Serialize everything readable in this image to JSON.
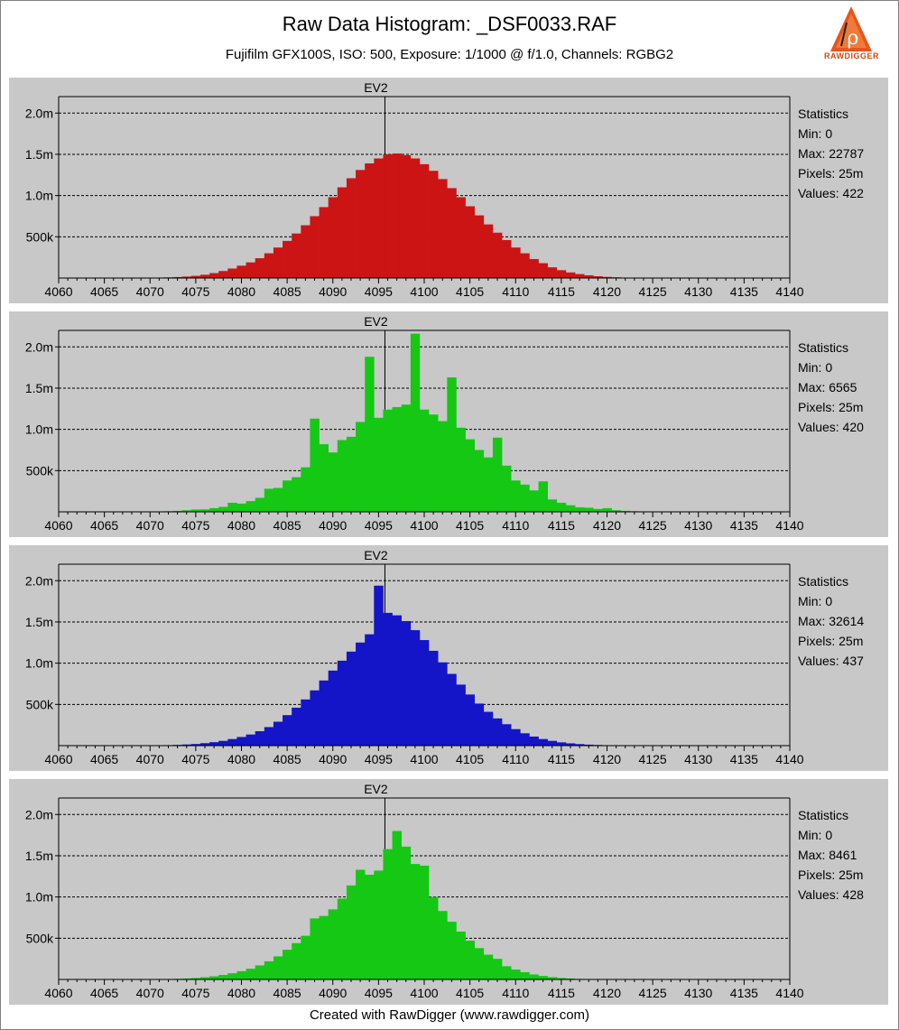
{
  "header": {
    "title": "Raw Data Histogram: _DSF0033.RAF",
    "subtitle": "Fujifilm GFX100S, ISO: 500, Exposure: 1/1000 @ f/1.0, Channels: RGBG2",
    "logo_text": "RAWDIGGER"
  },
  "footer": "Created with RawDigger (www.rawdigger.com)",
  "stats_heading": "Statistics",
  "chart_data": [
    {
      "type": "bar",
      "channel": "R",
      "color": "#cc1414",
      "marker_label": "EV2",
      "marker_x": 4096,
      "xlim": [
        4060,
        4140
      ],
      "xticks": [
        4060,
        4065,
        4070,
        4075,
        4080,
        4085,
        4090,
        4095,
        4100,
        4105,
        4110,
        4115,
        4120,
        4125,
        4130,
        4135,
        4140
      ],
      "ylim": [
        0,
        2200000
      ],
      "yticks": [
        500000,
        1000000,
        1500000,
        2000000
      ],
      "ytick_labels": [
        "500k",
        "1.0m",
        "1.5m",
        "2.0m"
      ],
      "x_start": 4070,
      "values": [
        3000,
        5000,
        8000,
        12000,
        18000,
        27000,
        40000,
        60000,
        85000,
        115000,
        150000,
        190000,
        240000,
        300000,
        370000,
        450000,
        540000,
        640000,
        750000,
        860000,
        980000,
        1100000,
        1210000,
        1310000,
        1390000,
        1450000,
        1500000,
        1510000,
        1490000,
        1450000,
        1380000,
        1300000,
        1200000,
        1090000,
        980000,
        870000,
        760000,
        650000,
        550000,
        460000,
        370000,
        300000,
        230000,
        180000,
        130000,
        95000,
        68000,
        48000,
        33000,
        22000,
        14000,
        9000,
        5000
      ],
      "stats": {
        "min": "Min: 0",
        "max": "Max: 22787",
        "pixels": "Pixels: 25m",
        "values": "Values: 422"
      }
    },
    {
      "type": "bar",
      "channel": "G",
      "color": "#14c814",
      "marker_label": "EV2",
      "marker_x": 4096,
      "xlim": [
        4060,
        4140
      ],
      "xticks": [
        4060,
        4065,
        4070,
        4075,
        4080,
        4085,
        4090,
        4095,
        4100,
        4105,
        4110,
        4115,
        4120,
        4125,
        4130,
        4135,
        4140
      ],
      "ylim": [
        0,
        2200000
      ],
      "yticks": [
        500000,
        1000000,
        1500000,
        2000000
      ],
      "ytick_labels": [
        "500k",
        "1.0m",
        "1.5m",
        "2.0m"
      ],
      "x_start": 4071,
      "values": [
        5000,
        8000,
        12000,
        20000,
        28000,
        30000,
        45000,
        60000,
        110000,
        100000,
        130000,
        170000,
        280000,
        290000,
        380000,
        420000,
        540000,
        1130000,
        820000,
        720000,
        870000,
        910000,
        1090000,
        1880000,
        1140000,
        1240000,
        1270000,
        1300000,
        2160000,
        1240000,
        1180000,
        1100000,
        1630000,
        1020000,
        880000,
        750000,
        660000,
        900000,
        560000,
        380000,
        330000,
        260000,
        370000,
        150000,
        110000,
        80000,
        55000,
        50000,
        35000,
        45000,
        20000,
        12000,
        8000,
        5000
      ],
      "stats": {
        "min": "Min: 0",
        "max": "Max: 6565",
        "pixels": "Pixels: 25m",
        "values": "Values: 420"
      }
    },
    {
      "type": "bar",
      "channel": "B",
      "color": "#1414c8",
      "marker_label": "EV2",
      "marker_x": 4096,
      "xlim": [
        4060,
        4140
      ],
      "xticks": [
        4060,
        4065,
        4070,
        4075,
        4080,
        4085,
        4090,
        4095,
        4100,
        4105,
        4110,
        4115,
        4120,
        4125,
        4130,
        4135,
        4140
      ],
      "ylim": [
        0,
        2200000
      ],
      "yticks": [
        500000,
        1000000,
        1500000,
        2000000
      ],
      "ytick_labels": [
        "500k",
        "1.0m",
        "1.5m",
        "2.0m"
      ],
      "x_start": 4072,
      "values": [
        6000,
        9000,
        14000,
        20000,
        30000,
        42000,
        58000,
        80000,
        105000,
        135000,
        175000,
        225000,
        290000,
        370000,
        460000,
        560000,
        670000,
        790000,
        910000,
        1030000,
        1140000,
        1250000,
        1350000,
        1940000,
        1610000,
        1580000,
        1510000,
        1400000,
        1280000,
        1150000,
        1010000,
        870000,
        740000,
        620000,
        510000,
        410000,
        330000,
        260000,
        200000,
        150000,
        110000,
        80000,
        58000,
        40000,
        28000,
        19000,
        12000,
        8000,
        5000,
        3000
      ],
      "stats": {
        "min": "Min: 0",
        "max": "Max: 32614",
        "pixels": "Pixels: 25m",
        "values": "Values: 437"
      }
    },
    {
      "type": "bar",
      "channel": "G2",
      "color": "#14c814",
      "marker_label": "EV2",
      "marker_x": 4096,
      "xlim": [
        4060,
        4140
      ],
      "xticks": [
        4060,
        4065,
        4070,
        4075,
        4080,
        4085,
        4090,
        4095,
        4100,
        4105,
        4110,
        4115,
        4120,
        4125,
        4130,
        4135,
        4140
      ],
      "ylim": [
        0,
        2200000
      ],
      "yticks": [
        500000,
        1000000,
        1500000,
        2000000
      ],
      "ytick_labels": [
        "500k",
        "1.0m",
        "1.5m",
        "2.0m"
      ],
      "x_start": 4072,
      "values": [
        5000,
        8000,
        12000,
        18000,
        27000,
        38000,
        55000,
        75000,
        100000,
        130000,
        170000,
        220000,
        280000,
        360000,
        440000,
        530000,
        740000,
        770000,
        850000,
        980000,
        1140000,
        1330000,
        1270000,
        1320000,
        1580000,
        1800000,
        1610000,
        1400000,
        1380000,
        1000000,
        830000,
        700000,
        580000,
        470000,
        380000,
        300000,
        250000,
        160000,
        120000,
        88000,
        60000,
        42000,
        28000,
        18000,
        12000,
        7000,
        4000,
        2000
      ],
      "stats": {
        "min": "Min: 0",
        "max": "Max: 8461",
        "pixels": "Pixels: 25m",
        "values": "Values: 428"
      }
    }
  ]
}
